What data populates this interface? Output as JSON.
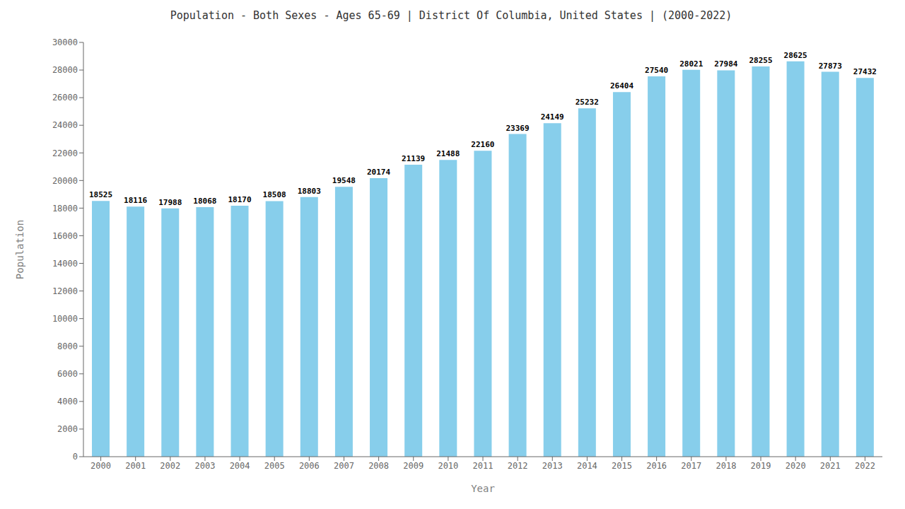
{
  "chart_data": {
    "type": "bar",
    "title": "Population - Both Sexes - Ages 65-69 | District Of Columbia, United States |  (2000-2022)",
    "x_label": "Year",
    "y_label": "Population",
    "categories": [
      "2000",
      "2001",
      "2002",
      "2003",
      "2004",
      "2005",
      "2006",
      "2007",
      "2008",
      "2009",
      "2010",
      "2011",
      "2012",
      "2013",
      "2014",
      "2015",
      "2016",
      "2017",
      "2018",
      "2019",
      "2020",
      "2021",
      "2022"
    ],
    "values": [
      18525,
      18116,
      17988,
      18068,
      18170,
      18508,
      18803,
      19548,
      20174,
      21139,
      21488,
      22160,
      23369,
      24149,
      25232,
      26404,
      27540,
      28021,
      27984,
      28255,
      28625,
      27873,
      27432
    ],
    "color": "#87CEEB",
    "ylim": [
      0,
      30000
    ],
    "yticks": [
      0,
      2000,
      4000,
      6000,
      8000,
      10000,
      12000,
      14000,
      16000,
      18000,
      20000,
      22000,
      24000,
      26000,
      28000,
      30000
    ],
    "grid": false,
    "data_labels": true
  }
}
